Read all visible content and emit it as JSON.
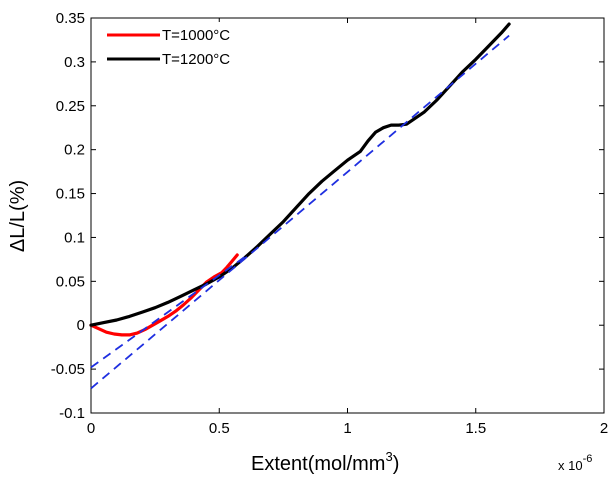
{
  "chart_data": {
    "type": "line",
    "title": "",
    "xlabel": "Extent(mol/mm",
    "xlabel_sup": "3",
    "xlabel_close": ")",
    "ylabel": "ΔL/L(%)",
    "x_multiplier_label": "x 10",
    "x_multiplier_exp": "-6",
    "xlim": [
      0,
      2
    ],
    "ylim": [
      -0.1,
      0.35
    ],
    "x_ticks": [
      0,
      0.5,
      1,
      1.5,
      2
    ],
    "x_tick_labels": [
      "0",
      "0.5",
      "1",
      "1.5",
      "2"
    ],
    "y_ticks": [
      -0.1,
      -0.05,
      0,
      0.05,
      0.1,
      0.15,
      0.2,
      0.25,
      0.3,
      0.35
    ],
    "y_tick_labels": [
      "-0.1",
      "-0.05",
      "0",
      "0.05",
      "0.1",
      "0.15",
      "0.2",
      "0.25",
      "0.3",
      "0.35"
    ],
    "grid": false,
    "legend_position": "top-left",
    "series": [
      {
        "name": "T=1000°C",
        "color": "#ff0000",
        "style": "solid",
        "x": [
          0.0,
          0.03,
          0.06,
          0.09,
          0.12,
          0.15,
          0.18,
          0.21,
          0.24,
          0.27,
          0.3,
          0.33,
          0.36,
          0.39,
          0.42,
          0.45,
          0.48,
          0.51,
          0.53,
          0.55,
          0.57
        ],
        "y": [
          0.0,
          -0.004,
          -0.008,
          -0.01,
          -0.011,
          -0.011,
          -0.009,
          -0.005,
          0.0,
          0.005,
          0.01,
          0.016,
          0.023,
          0.031,
          0.04,
          0.049,
          0.055,
          0.06,
          0.066,
          0.073,
          0.08
        ]
      },
      {
        "name": "T=1200°C",
        "color": "#000000",
        "style": "solid",
        "x": [
          0.0,
          0.05,
          0.1,
          0.15,
          0.2,
          0.25,
          0.3,
          0.35,
          0.4,
          0.45,
          0.5,
          0.55,
          0.6,
          0.65,
          0.7,
          0.75,
          0.8,
          0.85,
          0.9,
          0.95,
          1.0,
          1.05,
          1.08,
          1.11,
          1.14,
          1.17,
          1.2,
          1.23,
          1.26,
          1.3,
          1.35,
          1.4,
          1.45,
          1.5,
          1.55,
          1.6,
          1.63
        ],
        "y": [
          0.0,
          0.003,
          0.006,
          0.01,
          0.015,
          0.02,
          0.026,
          0.033,
          0.04,
          0.047,
          0.055,
          0.065,
          0.077,
          0.09,
          0.104,
          0.118,
          0.134,
          0.15,
          0.164,
          0.176,
          0.188,
          0.198,
          0.21,
          0.22,
          0.225,
          0.228,
          0.228,
          0.229,
          0.235,
          0.243,
          0.257,
          0.273,
          0.289,
          0.303,
          0.318,
          0.333,
          0.343
        ]
      },
      {
        "name": "",
        "color": "#1f2fe0",
        "style": "dashed",
        "x": [
          0.0,
          1.63
        ],
        "y": [
          -0.072,
          0.33
        ]
      },
      {
        "name": "",
        "color": "#1f2fe0",
        "style": "dashed",
        "x": [
          0.0,
          0.6
        ],
        "y": [
          -0.048,
          0.078
        ]
      }
    ]
  }
}
